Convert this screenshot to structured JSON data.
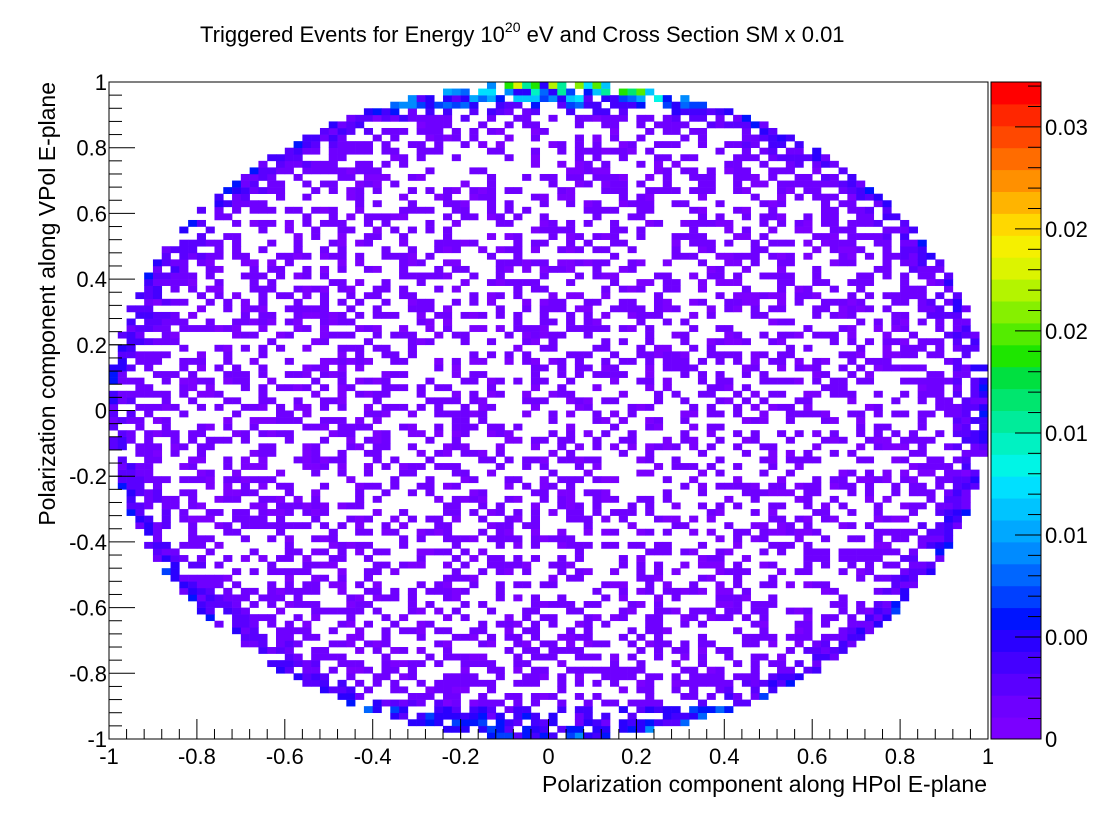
{
  "chart_data": {
    "type": "heatmap",
    "title_parts": {
      "prefix": "Triggered Events for Energy 10",
      "superscript": "20",
      "suffix": " eV and Cross Section SM x 0.01"
    },
    "xlabel": "Polarization component along HPol E-plane",
    "ylabel": "Polarization component along VPol E-plane",
    "xlim": [
      -1,
      1
    ],
    "ylim": [
      -1,
      1
    ],
    "x_tick_labels": [
      "-1",
      "-0.8",
      "-0.6",
      "-0.4",
      "-0.2",
      "0",
      "0.2",
      "0.4",
      "0.6",
      "0.8",
      "1"
    ],
    "x_tick_values": [
      -1,
      -0.8,
      -0.6,
      -0.4,
      -0.2,
      0,
      0.2,
      0.4,
      0.6,
      0.8,
      1
    ],
    "y_tick_labels": [
      "-1",
      "-0.8",
      "-0.6",
      "-0.4",
      "-0.2",
      "0",
      "0.2",
      "0.4",
      "0.6",
      "0.8",
      "1"
    ],
    "y_tick_values": [
      -1,
      -0.8,
      -0.6,
      -0.4,
      -0.2,
      0,
      0.2,
      0.4,
      0.6,
      0.8,
      1
    ],
    "bins": {
      "nx": 100,
      "ny": 100
    },
    "grid": false,
    "colorbar": {
      "zmin": 0,
      "zmax": 0.0322,
      "tick_labels": [
        "0",
        "0.00",
        "0.01",
        "0.01",
        "0.02",
        "0.02",
        "0.03"
      ],
      "tick_values": [
        0,
        0.005,
        0.01,
        0.015,
        0.02,
        0.025,
        0.03
      ],
      "palette": [
        "#7b00ff",
        "#6e00ff",
        "#5a00ff",
        "#4400ff",
        "#2a00ff",
        "#0014ff",
        "#0040ff",
        "#0066ff",
        "#008bff",
        "#00a8ff",
        "#00c4ff",
        "#00e0ff",
        "#00f5e6",
        "#00f2c2",
        "#00ec9a",
        "#00e66e",
        "#00e040",
        "#1ee600",
        "#54ec00",
        "#86f000",
        "#b4f400",
        "#dcf400",
        "#f5f000",
        "#ffd800",
        "#ffb400",
        "#ff9000",
        "#ff6c00",
        "#ff4800",
        "#ff2600",
        "#ff0000"
      ]
    },
    "distribution": "filled unit disk of bins; sparse low-value (violet) occupancy in interior, denser blue/cyan at rim, highest (cyan-green-yellow) near top edge y≈1",
    "max_bin_region": "top rim near x∈[-0.3,0.3], y≈0.98"
  }
}
